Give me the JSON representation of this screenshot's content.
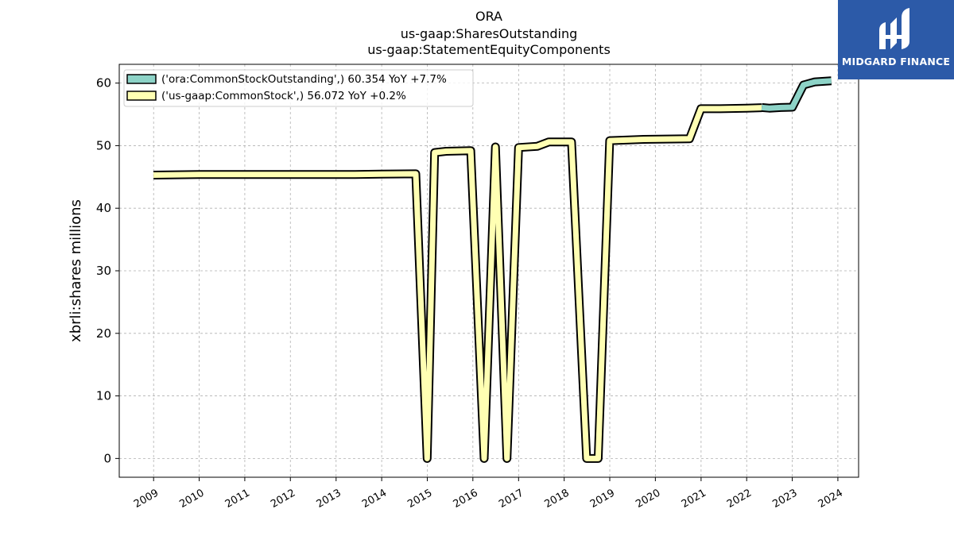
{
  "title": {
    "line1": "ORA",
    "line2": "us-gaap:SharesOutstanding",
    "line3": "us-gaap:StatementEquityComponents"
  },
  "logo": {
    "text": "MIDGARD FINANCE",
    "icon": "midgard-logo-icon"
  },
  "colors": {
    "series_stock_outstanding": "#8dd3c7",
    "series_common_stock": "#ffffb3",
    "logo_background": "#2c5aa8",
    "grid": "#b0b0b0"
  },
  "chart_data": {
    "type": "line",
    "ylabel": "xbrli:shares millions",
    "xlabel": "",
    "ylim": [
      -3,
      63
    ],
    "xlim": [
      "2008-04-01",
      "2024-06-15"
    ],
    "yticks": [
      0,
      10,
      20,
      30,
      40,
      50,
      60
    ],
    "xticks": [
      "2009",
      "2010",
      "2011",
      "2012",
      "2013",
      "2014",
      "2015",
      "2016",
      "2017",
      "2018",
      "2019",
      "2020",
      "2021",
      "2022",
      "2023",
      "2024"
    ],
    "grid": true,
    "legend_position": "top-left",
    "series": [
      {
        "name": "('ora:CommonStockOutstanding',) 60.354 YoY +7.7%",
        "points": [
          [
            "2022-05-01",
            56.1
          ],
          [
            "2022-07-01",
            56.0
          ],
          [
            "2022-10-01",
            56.1
          ],
          [
            "2023-01-01",
            56.15
          ],
          [
            "2023-04-01",
            59.7
          ],
          [
            "2023-07-01",
            60.2
          ],
          [
            "2023-11-10",
            60.354
          ]
        ]
      },
      {
        "name": "('us-gaap:CommonStock',) 56.072 YoY +0.2%",
        "points": [
          [
            "2008-12-31",
            45.3
          ],
          [
            "2010-01-01",
            45.4
          ],
          [
            "2011-01-01",
            45.4
          ],
          [
            "2012-01-01",
            45.4
          ],
          [
            "2013-01-01",
            45.4
          ],
          [
            "2013-06-01",
            45.4
          ],
          [
            "2014-01-01",
            45.45
          ],
          [
            "2014-10-01",
            45.5
          ],
          [
            "2014-12-31",
            0
          ],
          [
            "2015-03-01",
            48.9
          ],
          [
            "2015-06-01",
            49.1
          ],
          [
            "2015-12-15",
            49.2
          ],
          [
            "2016-03-31",
            0
          ],
          [
            "2016-06-30",
            49.8
          ],
          [
            "2016-09-30",
            0
          ],
          [
            "2017-01-01",
            49.7
          ],
          [
            "2017-06-01",
            49.9
          ],
          [
            "2017-09-01",
            50.6
          ],
          [
            "2018-03-01",
            50.6
          ],
          [
            "2018-06-30",
            0
          ],
          [
            "2018-09-30",
            0
          ],
          [
            "2018-12-31",
            50.8
          ],
          [
            "2019-06-01",
            50.9
          ],
          [
            "2019-09-30",
            51.0
          ],
          [
            "2020-09-30",
            51.1
          ],
          [
            "2020-12-31",
            55.9
          ],
          [
            "2021-06-01",
            55.9
          ],
          [
            "2021-12-31",
            56.0
          ],
          [
            "2022-05-01",
            56.072
          ]
        ]
      }
    ]
  }
}
